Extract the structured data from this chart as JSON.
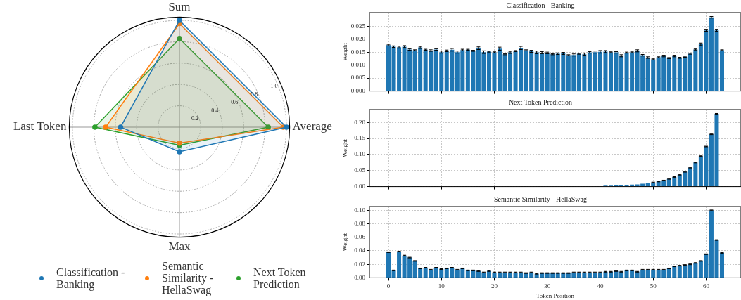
{
  "chart_data": [
    {
      "type": "radar",
      "categories": [
        "Sum",
        "Average",
        "Max",
        "Last Token"
      ],
      "ylim": [
        0,
        1.03
      ],
      "yticks": [
        0.2,
        0.4,
        0.6,
        0.8,
        {
          "value": 1,
          "label": "1.0"
        }
      ],
      "grid": true,
      "legend": "bottom",
      "marker": "circle",
      "series": [
        {
          "name": "Classification - Banking",
          "color": "#1f77b4",
          "values": [
            1.0,
            1.0,
            0.23,
            0.55
          ]
        },
        {
          "name": "Semantic Similarity - HellaSwag",
          "color": "#ff7f0e",
          "values": [
            0.97,
            0.97,
            0.15,
            0.69
          ]
        },
        {
          "name": "Next Token Prediction",
          "color": "#2ca02c",
          "values": [
            0.83,
            0.83,
            0.17,
            0.79
          ]
        }
      ]
    },
    {
      "type": "bar",
      "title": "Classification - Banking",
      "ylabel": "Weight",
      "color": "#1f77b4",
      "grid": true,
      "tick_labels": "y",
      "xlim": [
        -3.59,
        66.59
      ],
      "xticks": [
        0,
        10,
        20,
        30,
        40,
        50,
        60
      ],
      "ylim": [
        0,
        0.0302
      ],
      "yticks": [
        {
          "value": 0,
          "label": "0.000"
        },
        {
          "value": 0.005,
          "label": "0.005"
        },
        {
          "value": 0.01,
          "label": "0.010"
        },
        {
          "value": 0.015,
          "label": "0.015"
        },
        {
          "value": 0.02,
          "label": "0.020"
        },
        {
          "value": 0.025,
          "label": "0.025"
        }
      ],
      "x": [
        0,
        1,
        2,
        3,
        4,
        5,
        6,
        7,
        8,
        9,
        10,
        11,
        12,
        13,
        14,
        15,
        16,
        17,
        18,
        19,
        20,
        21,
        22,
        23,
        24,
        25,
        26,
        27,
        28,
        29,
        30,
        31,
        32,
        33,
        34,
        35,
        36,
        37,
        38,
        39,
        40,
        41,
        42,
        43,
        44,
        45,
        46,
        47,
        48,
        49,
        50,
        51,
        52,
        53,
        54,
        55,
        56,
        57,
        58,
        59,
        60,
        61,
        62,
        63
      ],
      "values": [
        0.0177,
        0.0171,
        0.0169,
        0.0171,
        0.016,
        0.0157,
        0.0168,
        0.0159,
        0.0156,
        0.016,
        0.015,
        0.0155,
        0.0159,
        0.015,
        0.0158,
        0.0159,
        0.0155,
        0.0165,
        0.015,
        0.0152,
        0.0149,
        0.0163,
        0.0142,
        0.0149,
        0.0154,
        0.0166,
        0.0157,
        0.0153,
        0.0149,
        0.0148,
        0.0147,
        0.0142,
        0.0144,
        0.0145,
        0.0138,
        0.0139,
        0.0144,
        0.0142,
        0.0149,
        0.015,
        0.0151,
        0.0152,
        0.0149,
        0.0149,
        0.0136,
        0.0148,
        0.0149,
        0.0155,
        0.0138,
        0.0129,
        0.0122,
        0.013,
        0.0135,
        0.0127,
        0.0135,
        0.0128,
        0.0132,
        0.0144,
        0.016,
        0.018,
        0.0234,
        0.0284,
        0.0234,
        0.0157
      ],
      "errors": [
        0.0003,
        0.0003,
        0.0004,
        0.0004,
        0.0003,
        0.0002,
        0.0004,
        0.0002,
        0.0003,
        0.0003,
        0.0004,
        0.0003,
        0.0005,
        0.0004,
        0.0003,
        0.0002,
        0.0002,
        0.0005,
        0.0005,
        0.0002,
        0.0002,
        0.0006,
        0.0002,
        0.0004,
        0.0002,
        0.0006,
        0.0002,
        0.0004,
        0.0005,
        0.0004,
        0.0003,
        0.0002,
        0.0003,
        0.0004,
        0.0002,
        0.0004,
        0.0002,
        0.0004,
        0.0003,
        0.0004,
        0.0005,
        0.0004,
        0.0002,
        0.0003,
        0.0004,
        0.0002,
        0.0002,
        0.0004,
        0.0003,
        0.0003,
        0.0002,
        0.0002,
        0.0003,
        0.0002,
        0.0003,
        0.0002,
        0.0002,
        0.0002,
        0.0002,
        0.0005,
        0.0004,
        0.0003,
        0.0004,
        0.0002
      ]
    },
    {
      "type": "bar",
      "title": "Next Token Prediction",
      "ylabel": "Weight",
      "color": "#1f77b4",
      "grid": true,
      "tick_labels": "y",
      "xlim": [
        -3.59,
        66.59
      ],
      "xticks": [
        0,
        10,
        20,
        30,
        40,
        50,
        60
      ],
      "ylim": [
        0,
        0.24
      ],
      "yticks": [
        {
          "value": 0,
          "label": "0.00"
        },
        {
          "value": 0.05,
          "label": "0.05"
        },
        {
          "value": 0.1,
          "label": "0.10"
        },
        {
          "value": 0.15,
          "label": "0.15"
        },
        {
          "value": 0.2,
          "label": "0.20"
        }
      ],
      "x": [
        0,
        1,
        2,
        3,
        4,
        5,
        6,
        7,
        8,
        9,
        10,
        11,
        12,
        13,
        14,
        15,
        16,
        17,
        18,
        19,
        20,
        21,
        22,
        23,
        24,
        25,
        26,
        27,
        28,
        29,
        30,
        31,
        32,
        33,
        34,
        35,
        36,
        37,
        38,
        39,
        40,
        41,
        42,
        43,
        44,
        45,
        46,
        47,
        48,
        49,
        50,
        51,
        52,
        53,
        54,
        55,
        56,
        57,
        58,
        59,
        60,
        61,
        62
      ],
      "values": [
        0,
        0,
        0,
        0,
        0,
        0,
        0,
        0,
        0,
        0,
        0,
        0,
        0,
        0,
        0,
        0,
        0,
        0,
        0,
        0,
        0,
        0,
        0,
        0,
        0,
        0,
        0,
        0,
        0,
        0,
        0,
        0,
        0,
        0,
        0,
        0,
        null,
        null,
        null,
        null,
        null,
        0.003,
        0.003,
        0.004,
        0.004,
        0.005,
        0.006,
        0.007,
        0.009,
        0.011,
        0.013,
        0.016,
        0.019,
        0.024,
        0.03,
        0.037,
        0.046,
        0.059,
        0.075,
        0.095,
        0.125,
        0.163,
        0.227
      ],
      "errors": [
        null,
        null,
        null,
        null,
        null,
        null,
        null,
        null,
        null,
        null,
        null,
        null,
        null,
        null,
        null,
        null,
        null,
        null,
        null,
        null,
        null,
        null,
        null,
        null,
        null,
        null,
        null,
        null,
        null,
        null,
        null,
        null,
        null,
        null,
        null,
        null,
        null,
        null,
        null,
        null,
        null,
        null,
        null,
        null,
        null,
        null,
        null,
        null,
        null,
        null,
        0.001,
        0.001,
        0.001,
        0.001,
        0.001,
        0.001,
        0.001,
        0.001,
        0.001,
        0.001,
        0.001,
        0.001,
        0.001
      ]
    },
    {
      "type": "bar",
      "title": "Semantic Similarity - HellaSwag",
      "ylabel": "Weight",
      "xlabel": "Token Position",
      "color": "#1f77b4",
      "grid": true,
      "xlim": [
        -3.59,
        66.59
      ],
      "xticks": [
        0,
        10,
        20,
        30,
        40,
        50,
        60
      ],
      "ylim": [
        0,
        0.1056
      ],
      "yticks": [
        {
          "value": 0,
          "label": "0.00"
        },
        {
          "value": 0.02,
          "label": "0.02"
        },
        {
          "value": 0.04,
          "label": "0.04"
        },
        {
          "value": 0.06,
          "label": "0.06"
        },
        {
          "value": 0.08,
          "label": "0.08"
        },
        {
          "value": 0.1,
          "label": "0.10"
        }
      ],
      "x": [
        0,
        1,
        2,
        3,
        4,
        5,
        6,
        7,
        8,
        9,
        10,
        11,
        12,
        13,
        14,
        15,
        16,
        17,
        18,
        19,
        20,
        21,
        22,
        23,
        24,
        25,
        26,
        27,
        28,
        29,
        30,
        31,
        32,
        33,
        34,
        35,
        36,
        37,
        38,
        39,
        40,
        41,
        42,
        43,
        44,
        45,
        46,
        47,
        48,
        49,
        50,
        51,
        52,
        53,
        54,
        55,
        56,
        57,
        58,
        59,
        60,
        61,
        62,
        63
      ],
      "values": [
        0.038,
        0.011,
        0.039,
        0.033,
        0.03,
        0.025,
        0.014,
        0.015,
        0.012,
        0.015,
        0.013,
        0.014,
        0.015,
        0.012,
        0.014,
        0.011,
        0.011,
        0.01,
        0.008,
        0.01,
        0.008,
        0.008,
        0.008,
        0.008,
        0.008,
        0.008,
        0.007,
        0.008,
        0.006,
        0.007,
        0.007,
        0.007,
        0.007,
        0.007,
        0.007,
        0.008,
        0.008,
        0.008,
        0.008,
        0.008,
        0.008,
        0.009,
        0.009,
        0.01,
        0.009,
        0.011,
        0.011,
        0.009,
        0.012,
        0.012,
        0.012,
        0.012,
        0.012,
        0.014,
        0.017,
        0.018,
        0.019,
        0.02,
        0.022,
        0.025,
        0.035,
        0.1,
        0.056,
        0.037
      ],
      "errors": [
        0.0005,
        0.0005,
        0.0005,
        0.0005,
        0.0005,
        0.0005,
        0.0005,
        0.0005,
        0.0005,
        0.0005,
        0.0005,
        0.0005,
        0.0005,
        0.0005,
        0.0005,
        0.0005,
        0.0005,
        0.0005,
        0.0005,
        0.0005,
        0.0005,
        0.0005,
        0.0005,
        0.0005,
        0.0005,
        0.0005,
        0.0005,
        0.0005,
        0.0005,
        0.0005,
        0.0005,
        0.0005,
        0.0005,
        0.0005,
        0.0005,
        0.0005,
        0.0005,
        0.0005,
        0.0005,
        0.0005,
        0.0005,
        0.0005,
        0.0005,
        0.0005,
        0.0005,
        0.0005,
        0.0005,
        0.0005,
        0.0005,
        0.0005,
        0.0005,
        0.0005,
        0.0005,
        0.0005,
        0.0005,
        0.0005,
        0.0005,
        0.0005,
        0.0005,
        0.0005,
        0.0005,
        0.0005,
        0.0005,
        0.0005
      ]
    }
  ]
}
